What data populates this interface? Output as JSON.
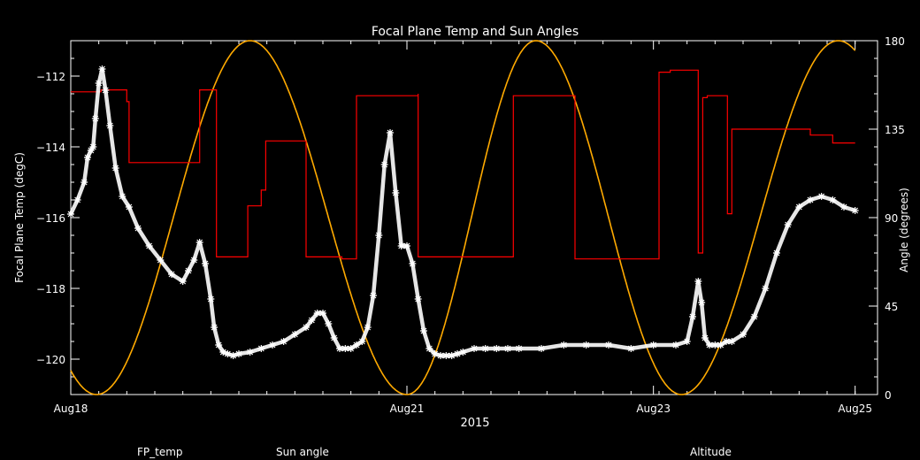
{
  "chart_data": {
    "type": "line",
    "title": "Focal Plane Temp and Sun Angles",
    "xlabel": "2015",
    "ylabel_left": "Focal Plane Temp (degC)",
    "ylabel_right": "Angle (degrees)",
    "x_unit": "days since Aug18 00:00",
    "xlim": [
      0,
      7.2
    ],
    "ylim_left": [
      -121,
      -111
    ],
    "ylim_right": [
      0,
      180
    ],
    "x_ticks": [
      {
        "x": 0,
        "label": "Aug18"
      },
      {
        "x": 3,
        "label": "Aug21"
      },
      {
        "x": 5.2,
        "label": "Aug23"
      },
      {
        "x": 7.0,
        "label": "Aug25"
      }
    ],
    "y_ticks_left": [
      {
        "v": -112,
        "label": "−112"
      },
      {
        "v": -114,
        "label": "−114"
      },
      {
        "v": -116,
        "label": "−116"
      },
      {
        "v": -118,
        "label": "−118"
      },
      {
        "v": -120,
        "label": "−120"
      }
    ],
    "y_ticks_right": [
      {
        "v": 0,
        "label": "0"
      },
      {
        "v": 45,
        "label": "45"
      },
      {
        "v": 90,
        "label": "90"
      },
      {
        "v": 135,
        "label": "135"
      },
      {
        "v": 180,
        "label": "180"
      }
    ],
    "legend": [
      {
        "name": "FP_temp",
        "color": "#ffffff"
      },
      {
        "name": "Sun angle",
        "color": "#ff0000"
      },
      {
        "name": "Altitude",
        "color": "#ffaa00"
      }
    ],
    "series": [
      {
        "name": "FP_temp",
        "axis": "left",
        "color": "#ffffff",
        "style": "markers",
        "x": [
          0.0,
          0.06,
          0.12,
          0.15,
          0.18,
          0.2,
          0.22,
          0.25,
          0.28,
          0.31,
          0.35,
          0.4,
          0.46,
          0.52,
          0.6,
          0.7,
          0.8,
          0.9,
          1.0,
          1.05,
          1.1,
          1.15,
          1.2,
          1.25,
          1.28,
          1.32,
          1.36,
          1.4,
          1.45,
          1.5,
          1.6,
          1.7,
          1.8,
          1.9,
          2.0,
          2.1,
          2.15,
          2.2,
          2.25,
          2.3,
          2.35,
          2.4,
          2.45,
          2.5,
          2.55,
          2.6,
          2.65,
          2.7,
          2.75,
          2.8,
          2.85,
          2.9,
          2.95,
          3.0,
          3.05,
          3.1,
          3.15,
          3.2,
          3.25,
          3.3,
          3.35,
          3.4,
          3.45,
          3.5,
          3.6,
          3.7,
          3.8,
          3.9,
          4.0,
          4.2,
          4.4,
          4.6,
          4.8,
          5.0,
          5.2,
          5.4,
          5.5,
          5.55,
          5.6,
          5.63,
          5.66,
          5.7,
          5.75,
          5.8,
          5.85,
          5.9,
          6.0,
          6.1,
          6.2,
          6.3,
          6.4,
          6.5,
          6.6,
          6.7,
          6.8,
          6.9,
          7.0
        ],
        "y": [
          -115.9,
          -115.5,
          -115.0,
          -114.3,
          -114.1,
          -114.0,
          -113.2,
          -112.2,
          -111.8,
          -112.4,
          -113.4,
          -114.6,
          -115.4,
          -115.7,
          -116.3,
          -116.8,
          -117.2,
          -117.6,
          -117.8,
          -117.5,
          -117.2,
          -116.7,
          -117.3,
          -118.3,
          -119.1,
          -119.6,
          -119.8,
          -119.85,
          -119.9,
          -119.85,
          -119.8,
          -119.7,
          -119.6,
          -119.5,
          -119.3,
          -119.1,
          -118.9,
          -118.7,
          -118.7,
          -119.0,
          -119.4,
          -119.7,
          -119.7,
          -119.7,
          -119.6,
          -119.5,
          -119.1,
          -118.2,
          -116.5,
          -114.5,
          -113.6,
          -115.3,
          -116.8,
          -116.8,
          -117.3,
          -118.3,
          -119.2,
          -119.7,
          -119.85,
          -119.9,
          -119.9,
          -119.9,
          -119.85,
          -119.8,
          -119.7,
          -119.7,
          -119.7,
          -119.7,
          -119.7,
          -119.7,
          -119.6,
          -119.6,
          -119.6,
          -119.7,
          -119.6,
          -119.6,
          -119.5,
          -118.8,
          -117.8,
          -118.4,
          -119.4,
          -119.6,
          -119.6,
          -119.6,
          -119.5,
          -119.5,
          -119.3,
          -118.8,
          -118.0,
          -117.0,
          -116.2,
          -115.7,
          -115.5,
          -115.4,
          -115.5,
          -115.7,
          -115.8
        ]
      },
      {
        "name": "Sun angle",
        "axis": "right",
        "color": "#ff0000",
        "style": "line",
        "x": [
          0.0,
          0.27,
          0.27,
          0.5,
          0.5,
          0.52,
          0.52,
          1.15,
          1.15,
          1.3,
          1.3,
          1.32,
          1.32,
          1.58,
          1.58,
          1.7,
          1.7,
          1.74,
          1.74,
          2.1,
          2.1,
          2.42,
          2.42,
          2.52,
          2.52,
          2.55,
          2.55,
          3.0,
          3.0,
          3.1,
          3.1,
          3.1,
          3.1,
          3.3,
          3.3,
          3.95,
          3.95,
          4.35,
          4.35,
          4.5,
          4.5,
          5.25,
          5.25,
          5.35,
          5.35,
          5.6,
          5.6,
          5.64,
          5.64,
          5.68,
          5.68,
          5.78,
          5.78,
          5.86,
          5.86,
          5.9,
          5.9,
          6.0,
          6.0,
          6.6,
          6.6,
          6.8,
          6.8,
          6.95,
          6.95,
          7.0
        ],
        "y": [
          154,
          154,
          155,
          155,
          149,
          149,
          118,
          118,
          155,
          155,
          70,
          70,
          70,
          70,
          96,
          96,
          104,
          104,
          129,
          129,
          70,
          70,
          69,
          69,
          69,
          69,
          152,
          152,
          152,
          152,
          153,
          153,
          70,
          70,
          70,
          70,
          152,
          152,
          152,
          152,
          69,
          69,
          164,
          164,
          165,
          165,
          72,
          72,
          151,
          151,
          152,
          152,
          152,
          152,
          92,
          92,
          135,
          135,
          135,
          135,
          132,
          132,
          128,
          128,
          128,
          128
        ]
      },
      {
        "name": "Altitude",
        "axis": "right",
        "color": "#ffaa00",
        "style": "curve",
        "sin_minima_x": [
          0.23,
          3.0,
          5.45
        ],
        "sin_maxima_x": [
          1.6,
          4.15,
          6.85
        ],
        "amplitude_range": [
          0,
          180
        ]
      }
    ]
  }
}
